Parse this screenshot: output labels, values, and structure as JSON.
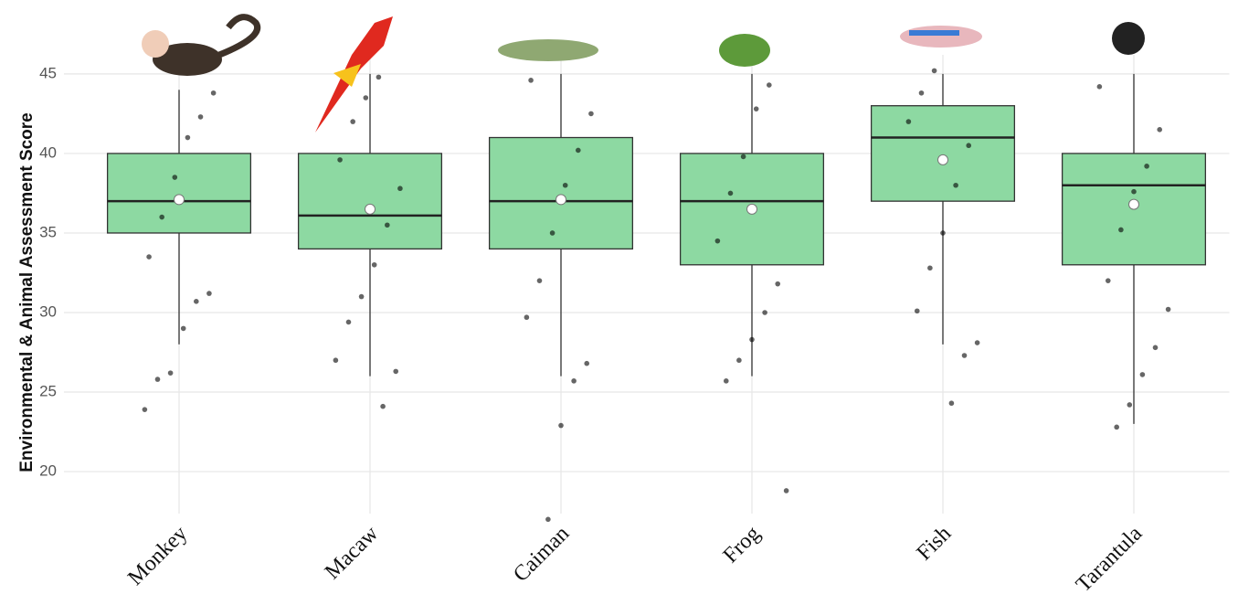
{
  "chart_data": {
    "type": "box",
    "y_label": "Environmental & Animal Assessment Score",
    "categories": [
      "Monkey",
      "Macaw",
      "Caiman",
      "Frog",
      "Fish",
      "Tarantula"
    ],
    "boxes": [
      {
        "min": 28,
        "q1": 35,
        "median": 37,
        "q3": 40,
        "max": 44,
        "mean": 37.1,
        "points": [
          23.9,
          25.8,
          26.2,
          29,
          30.7,
          31.2,
          33.5,
          36,
          38.5,
          41,
          42.3,
          43.8
        ]
      },
      {
        "min": 26,
        "q1": 34,
        "median": 36.1,
        "q3": 40,
        "max": 45,
        "mean": 36.5,
        "points": [
          24.1,
          26.3,
          27,
          29.4,
          31,
          33,
          35.5,
          37.8,
          39.6,
          42,
          43.5,
          44.8
        ]
      },
      {
        "min": 26,
        "q1": 34,
        "median": 37,
        "q3": 41,
        "max": 45,
        "mean": 37.1,
        "points": [
          17,
          22.9,
          25.7,
          26.8,
          29.7,
          32,
          35,
          38,
          40.2,
          42.5,
          44.6
        ]
      },
      {
        "min": 26,
        "q1": 33,
        "median": 37,
        "q3": 40,
        "max": 45,
        "mean": 36.5,
        "points": [
          18.8,
          25.7,
          27,
          28.3,
          30,
          31.8,
          34.5,
          37.5,
          39.8,
          42.8,
          44.3
        ]
      },
      {
        "min": 28,
        "q1": 37,
        "median": 41,
        "q3": 43,
        "max": 45,
        "mean": 39.6,
        "points": [
          24.3,
          27.3,
          28.1,
          30.1,
          32.8,
          35,
          38,
          40.5,
          42,
          43.8,
          45.2
        ]
      },
      {
        "min": 23,
        "q1": 33,
        "median": 38,
        "q3": 40,
        "max": 45,
        "mean": 36.8,
        "points": [
          22.8,
          24.2,
          26.1,
          27.8,
          30.2,
          32,
          35.2,
          37.6,
          39.2,
          41.5,
          44.2
        ]
      }
    ],
    "color": "#8dd9a2",
    "ylim": [
      16.5,
      46.2
    ],
    "yticks": [
      20,
      25,
      30,
      35,
      40,
      45
    ],
    "grid": true
  }
}
